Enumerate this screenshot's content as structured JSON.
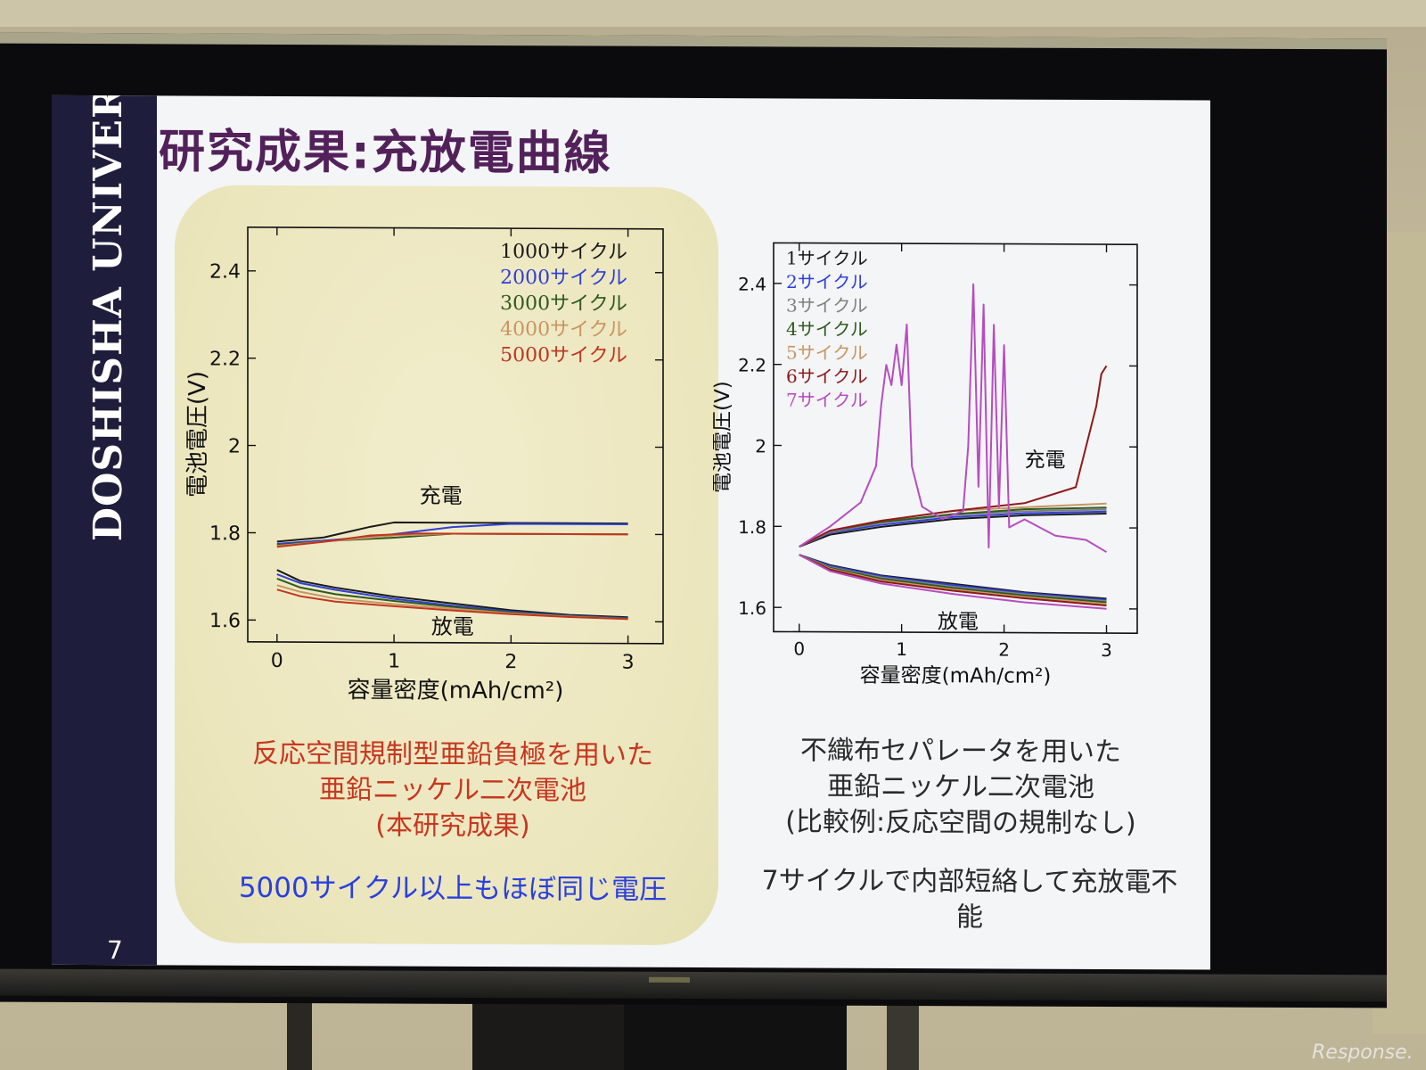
{
  "slide": {
    "title": "研究成果:充放電曲線",
    "sidebar_label": "DOSHISHA UNIVERSITY",
    "page_number": "7",
    "left_caption_lines": [
      "反応空間規制型亜鉛負極を用いた",
      "亜鉛ニッケル二次電池",
      "(本研究成果)"
    ],
    "left_note": "5000サイクル以上もほぼ同じ電圧",
    "right_caption_lines": [
      "不織布セパレータを用いた",
      "亜鉛ニッケル二次電池",
      "(比較例:反応空間の規制なし)"
    ],
    "right_note": "7サイクルで内部短絡して充放電不能",
    "watermark": "Response."
  },
  "chart_data": [
    {
      "type": "line",
      "xlabel": "容量密度(mAh/cm²)",
      "ylabel": "電池電圧(V)",
      "xlim": [
        -0.25,
        3.3
      ],
      "ylim": [
        1.55,
        2.5
      ],
      "x_ticks": [
        "0",
        "1",
        "2",
        "3"
      ],
      "y_ticks": [
        "1.6",
        "1.8",
        "2",
        "2.2",
        "2.4"
      ],
      "legend_position": "top-right",
      "annotations": [
        {
          "text": "充電",
          "x": 1.4,
          "y": 1.87
        },
        {
          "text": "放電",
          "x": 1.5,
          "y": 1.57
        }
      ],
      "series": [
        {
          "name": "1000サイクル",
          "color": "#1a1a1a",
          "charge": [
            [
              0,
              1.78
            ],
            [
              0.4,
              1.79
            ],
            [
              0.8,
              1.815
            ],
            [
              1.0,
              1.825
            ],
            [
              1.5,
              1.825
            ],
            [
              2.0,
              1.825
            ],
            [
              3.0,
              1.825
            ]
          ],
          "discharge": [
            [
              0,
              1.715
            ],
            [
              0.2,
              1.69
            ],
            [
              0.5,
              1.675
            ],
            [
              1.0,
              1.655
            ],
            [
              1.5,
              1.64
            ],
            [
              2.0,
              1.625
            ],
            [
              2.5,
              1.615
            ],
            [
              3.0,
              1.61
            ]
          ]
        },
        {
          "name": "2000サイクル",
          "color": "#2f3fd8",
          "charge": [
            [
              0,
              1.775
            ],
            [
              0.5,
              1.785
            ],
            [
              0.9,
              1.795
            ],
            [
              1.2,
              1.805
            ],
            [
              1.5,
              1.815
            ],
            [
              2.0,
              1.823
            ],
            [
              3.0,
              1.823
            ]
          ],
          "discharge": [
            [
              0,
              1.705
            ],
            [
              0.2,
              1.685
            ],
            [
              0.5,
              1.67
            ],
            [
              1.0,
              1.65
            ],
            [
              1.5,
              1.635
            ],
            [
              2.0,
              1.622
            ],
            [
              2.5,
              1.613
            ],
            [
              3.0,
              1.608
            ]
          ]
        },
        {
          "name": "3000サイクル",
          "color": "#2f5a1e",
          "charge": [
            [
              0,
              1.772
            ],
            [
              0.5,
              1.783
            ],
            [
              1.0,
              1.79
            ],
            [
              1.5,
              1.8
            ],
            [
              2.0,
              1.8
            ],
            [
              3.0,
              1.8
            ]
          ],
          "discharge": [
            [
              0,
              1.695
            ],
            [
              0.2,
              1.675
            ],
            [
              0.5,
              1.66
            ],
            [
              1.0,
              1.645
            ],
            [
              1.5,
              1.632
            ],
            [
              2.0,
              1.62
            ],
            [
              2.5,
              1.612
            ],
            [
              3.0,
              1.607
            ]
          ]
        },
        {
          "name": "4000サイクル",
          "color": "#c99563",
          "charge": [
            [
              0,
              1.77
            ],
            [
              0.5,
              1.783
            ],
            [
              1.0,
              1.795
            ],
            [
              1.5,
              1.8
            ],
            [
              2.0,
              1.8
            ],
            [
              3.0,
              1.8
            ]
          ],
          "discharge": [
            [
              0,
              1.68
            ],
            [
              0.2,
              1.665
            ],
            [
              0.5,
              1.65
            ],
            [
              1.0,
              1.638
            ],
            [
              1.5,
              1.628
            ],
            [
              2.0,
              1.618
            ],
            [
              2.5,
              1.611
            ],
            [
              3.0,
              1.606
            ]
          ]
        },
        {
          "name": "5000サイクル",
          "color": "#c0361f",
          "charge": [
            [
              0,
              1.768
            ],
            [
              0.4,
              1.78
            ],
            [
              0.8,
              1.795
            ],
            [
              1.2,
              1.8
            ],
            [
              2.0,
              1.8
            ],
            [
              3.0,
              1.8
            ]
          ],
          "discharge": [
            [
              0,
              1.67
            ],
            [
              0.2,
              1.655
            ],
            [
              0.5,
              1.643
            ],
            [
              1.0,
              1.633
            ],
            [
              1.5,
              1.624
            ],
            [
              2.0,
              1.616
            ],
            [
              2.5,
              1.61
            ],
            [
              3.0,
              1.606
            ]
          ]
        }
      ]
    },
    {
      "type": "line",
      "xlabel": "容量密度(mAh/cm²)",
      "ylabel": "電池電圧(V)",
      "xlim": [
        -0.25,
        3.3
      ],
      "ylim": [
        1.54,
        2.5
      ],
      "x_ticks": [
        "0",
        "1",
        "2",
        "3"
      ],
      "y_ticks": [
        "1.6",
        "1.8",
        "2",
        "2.2",
        "2.4"
      ],
      "legend_position": "top-left",
      "annotations": [
        {
          "text": "充電",
          "x": 2.4,
          "y": 1.95
        },
        {
          "text": "放電",
          "x": 1.55,
          "y": 1.55
        }
      ],
      "series": [
        {
          "name": "1サイクル",
          "color": "#1a1a1a",
          "charge": [
            [
              0,
              1.75
            ],
            [
              0.3,
              1.78
            ],
            [
              0.8,
              1.8
            ],
            [
              1.5,
              1.82
            ],
            [
              2.2,
              1.83
            ],
            [
              3.0,
              1.835
            ]
          ],
          "discharge": [
            [
              0,
              1.73
            ],
            [
              0.3,
              1.705
            ],
            [
              0.8,
              1.68
            ],
            [
              1.5,
              1.66
            ],
            [
              2.2,
              1.64
            ],
            [
              3.0,
              1.625
            ]
          ]
        },
        {
          "name": "2サイクル",
          "color": "#2f3fd8",
          "charge": [
            [
              0,
              1.75
            ],
            [
              0.3,
              1.785
            ],
            [
              0.8,
              1.805
            ],
            [
              1.5,
              1.825
            ],
            [
              2.2,
              1.835
            ],
            [
              3.0,
              1.84
            ]
          ],
          "discharge": [
            [
              0,
              1.73
            ],
            [
              0.3,
              1.703
            ],
            [
              0.8,
              1.678
            ],
            [
              1.5,
              1.657
            ],
            [
              2.2,
              1.638
            ],
            [
              3.0,
              1.622
            ]
          ]
        },
        {
          "name": "3サイクル",
          "color": "#808080",
          "charge": [
            [
              0,
              1.75
            ],
            [
              0.3,
              1.787
            ],
            [
              0.8,
              1.81
            ],
            [
              1.5,
              1.83
            ],
            [
              2.2,
              1.84
            ],
            [
              3.0,
              1.845
            ]
          ],
          "discharge": [
            [
              0,
              1.73
            ],
            [
              0.3,
              1.7
            ],
            [
              0.8,
              1.675
            ],
            [
              1.5,
              1.653
            ],
            [
              2.2,
              1.635
            ],
            [
              3.0,
              1.619
            ]
          ]
        },
        {
          "name": "4サイクル",
          "color": "#2f5a1e",
          "charge": [
            [
              0,
              1.75
            ],
            [
              0.3,
              1.79
            ],
            [
              0.8,
              1.812
            ],
            [
              1.5,
              1.832
            ],
            [
              2.2,
              1.845
            ],
            [
              3.0,
              1.85
            ]
          ],
          "discharge": [
            [
              0,
              1.73
            ],
            [
              0.3,
              1.698
            ],
            [
              0.8,
              1.672
            ],
            [
              1.5,
              1.65
            ],
            [
              2.2,
              1.632
            ],
            [
              3.0,
              1.616
            ]
          ]
        },
        {
          "name": "5サイクル",
          "color": "#c99563",
          "charge": [
            [
              0,
              1.75
            ],
            [
              0.3,
              1.79
            ],
            [
              0.8,
              1.815
            ],
            [
              1.5,
              1.84
            ],
            [
              2.2,
              1.85
            ],
            [
              3.0,
              1.86
            ]
          ],
          "discharge": [
            [
              0,
              1.73
            ],
            [
              0.3,
              1.696
            ],
            [
              0.8,
              1.668
            ],
            [
              1.5,
              1.646
            ],
            [
              2.2,
              1.628
            ],
            [
              3.0,
              1.612
            ]
          ]
        },
        {
          "name": "6サイクル",
          "color": "#8e1a1a",
          "charge": [
            [
              0,
              1.75
            ],
            [
              0.3,
              1.79
            ],
            [
              0.8,
              1.815
            ],
            [
              1.5,
              1.84
            ],
            [
              2.2,
              1.86
            ],
            [
              2.7,
              1.9
            ],
            [
              2.8,
              2.0
            ],
            [
              2.9,
              2.1
            ],
            [
              2.95,
              2.18
            ],
            [
              3.0,
              2.2
            ]
          ],
          "discharge": [
            [
              0,
              1.73
            ],
            [
              0.3,
              1.694
            ],
            [
              0.8,
              1.665
            ],
            [
              1.5,
              1.643
            ],
            [
              2.2,
              1.625
            ],
            [
              3.0,
              1.608
            ]
          ]
        },
        {
          "name": "7サイクル",
          "color": "#b64dbf",
          "charge": [
            [
              0,
              1.75
            ],
            [
              0.3,
              1.8
            ],
            [
              0.6,
              1.86
            ],
            [
              0.75,
              1.95
            ],
            [
              0.8,
              2.1
            ],
            [
              0.85,
              2.2
            ],
            [
              0.9,
              2.15
            ],
            [
              0.95,
              2.25
            ],
            [
              1.0,
              2.15
            ],
            [
              1.05,
              2.3
            ],
            [
              1.1,
              1.95
            ],
            [
              1.2,
              1.85
            ],
            [
              1.4,
              1.82
            ],
            [
              1.6,
              1.84
            ],
            [
              1.65,
              2.0
            ],
            [
              1.7,
              2.4
            ],
            [
              1.75,
              1.9
            ],
            [
              1.8,
              2.35
            ],
            [
              1.85,
              1.75
            ],
            [
              1.9,
              2.3
            ],
            [
              1.95,
              1.85
            ],
            [
              2.0,
              2.25
            ],
            [
              2.05,
              1.8
            ],
            [
              2.2,
              1.82
            ],
            [
              2.5,
              1.78
            ],
            [
              2.8,
              1.77
            ],
            [
              3.0,
              1.74
            ]
          ],
          "discharge": [
            [
              0,
              1.73
            ],
            [
              0.3,
              1.69
            ],
            [
              0.8,
              1.66
            ],
            [
              1.5,
              1.635
            ],
            [
              2.2,
              1.615
            ],
            [
              3.0,
              1.6
            ]
          ]
        }
      ]
    }
  ]
}
